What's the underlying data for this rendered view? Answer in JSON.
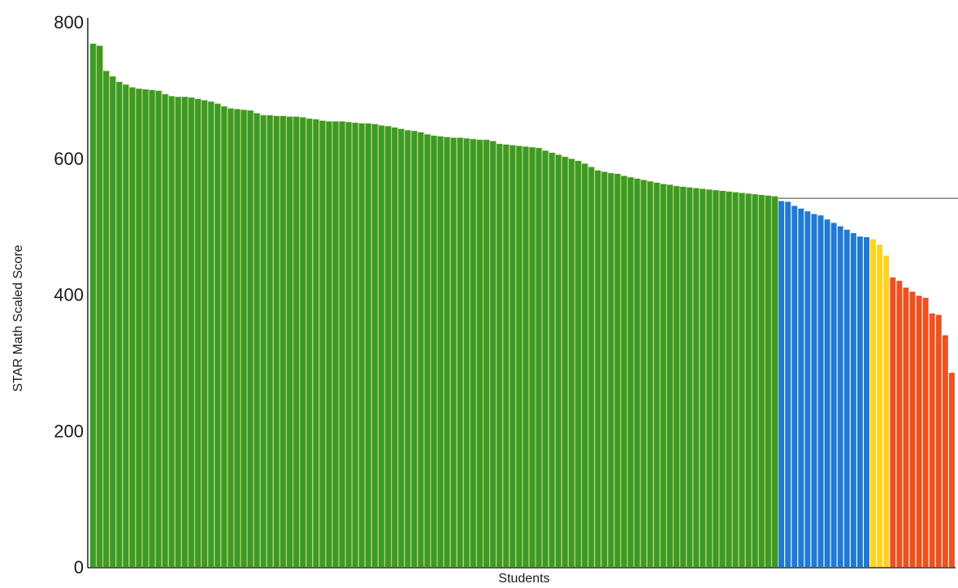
{
  "chart_data": {
    "type": "bar",
    "title": "",
    "xlabel": "Students",
    "ylabel": "STAR Math Scaled Score",
    "ylim": [
      0,
      800
    ],
    "yticks": [
      0,
      200,
      400,
      600,
      800
    ],
    "grid": false,
    "legend": "none",
    "reference_line": {
      "value": 541,
      "color": "#7a8a6a"
    },
    "colors": {
      "green": "#3a9a2e",
      "blue": "#1e7ad6",
      "yellow": "#ffd21e",
      "red": "#f0501e",
      "gap": "#c8d63c"
    },
    "series": [
      {
        "color_key": "green",
        "values": [
          768,
          765,
          728,
          720,
          712,
          708,
          704,
          702,
          701,
          700,
          699,
          694,
          691,
          690,
          690,
          689,
          687,
          685,
          683,
          680,
          676,
          673,
          672,
          671,
          670,
          666,
          663,
          663,
          662,
          662,
          661,
          661,
          660,
          658,
          657,
          655,
          654,
          654,
          654,
          653,
          652,
          651,
          651,
          650,
          648,
          647,
          645,
          643,
          641,
          640,
          638,
          635,
          633,
          632,
          631,
          630,
          630,
          629,
          628,
          627,
          627,
          625,
          621,
          620,
          619,
          618,
          617,
          616,
          615,
          611,
          608,
          605,
          602,
          599,
          596,
          592,
          587,
          582,
          580,
          578,
          577,
          574,
          572,
          570,
          568,
          566,
          564,
          562,
          561,
          559,
          558,
          557,
          556,
          555,
          554,
          553,
          552,
          551,
          550,
          549,
          548,
          547,
          546,
          545,
          544
        ]
      },
      {
        "color_key": "blue",
        "values": [
          537,
          536,
          530,
          526,
          522,
          518,
          516,
          510,
          505,
          500,
          495,
          490,
          485,
          484
        ]
      },
      {
        "color_key": "yellow",
        "values": [
          481,
          473,
          457
        ]
      },
      {
        "color_key": "red",
        "values": [
          425,
          420,
          410,
          404,
          398,
          395,
          372,
          370,
          340,
          285
        ]
      }
    ]
  }
}
